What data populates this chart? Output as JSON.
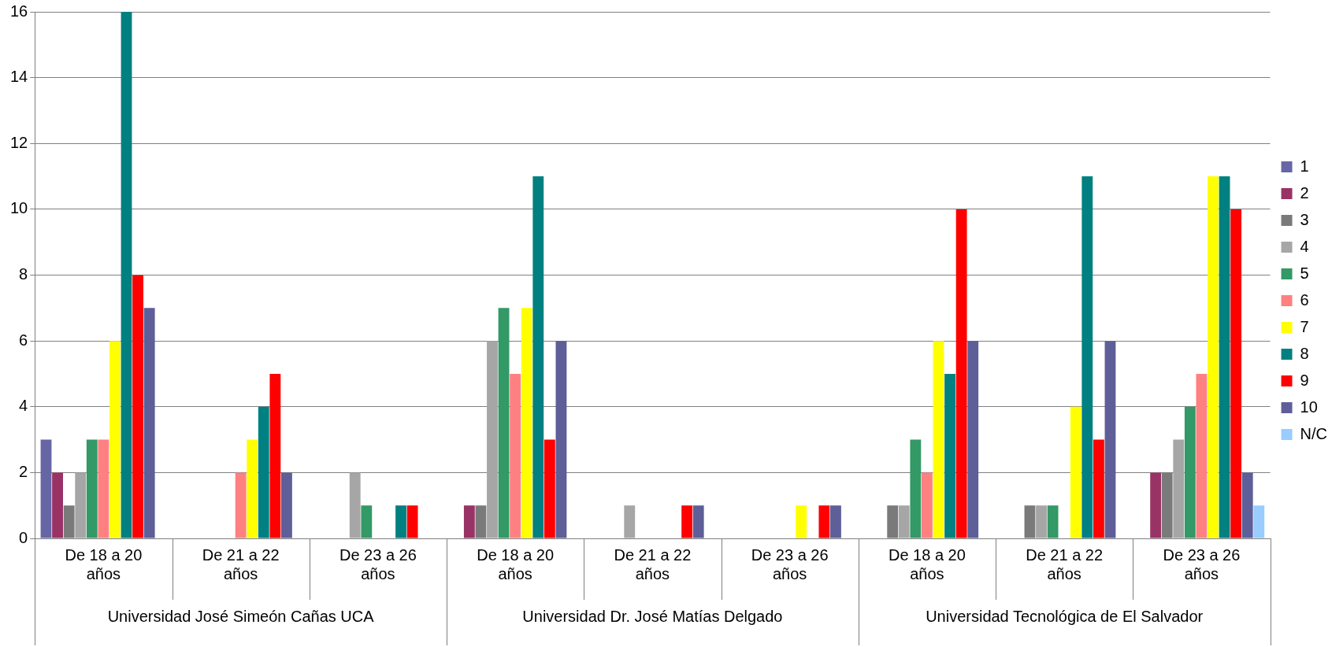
{
  "chart_data": {
    "type": "bar",
    "categories": [
      "De 18 a 20 años",
      "De 21 a 22 años",
      "De 23 a 26 años",
      "De 18 a 20 años",
      "De 21 a 22 años",
      "De 23 a 26 años",
      "De 18 a 20 años",
      "De 21 a 22 años",
      "De 23 a 26 años"
    ],
    "annotations": [
      "Universidad José Simeón Cañas UCA",
      "Universidad Dr. José Matías Delgado",
      "Universidad Tecnológica de El Salvador"
    ],
    "series": [
      {
        "name": "1",
        "color": "#6666a6",
        "values": [
          3,
          0,
          0,
          0,
          0,
          0,
          0,
          0,
          0
        ]
      },
      {
        "name": "2",
        "color": "#993366",
        "values": [
          2,
          0,
          0,
          1,
          0,
          0,
          0,
          0,
          2
        ]
      },
      {
        "name": "3",
        "color": "#7a7a7a",
        "values": [
          1,
          0,
          0,
          1,
          0,
          0,
          1,
          1,
          2
        ]
      },
      {
        "name": "4",
        "color": "#a6a6a6",
        "values": [
          2,
          0,
          2,
          6,
          1,
          0,
          1,
          1,
          3
        ]
      },
      {
        "name": "5",
        "color": "#339966",
        "values": [
          3,
          0,
          1,
          7,
          0,
          0,
          3,
          1,
          4
        ]
      },
      {
        "name": "6",
        "color": "#ff8080",
        "values": [
          3,
          2,
          0,
          5,
          0,
          0,
          2,
          0,
          5
        ]
      },
      {
        "name": "7",
        "color": "#ffff00",
        "values": [
          6,
          3,
          0,
          7,
          0,
          1,
          6,
          4,
          11
        ]
      },
      {
        "name": "8",
        "color": "#008080",
        "values": [
          16,
          4,
          1,
          11,
          0,
          0,
          5,
          11,
          11
        ]
      },
      {
        "name": "9",
        "color": "#ff0000",
        "values": [
          8,
          5,
          1,
          3,
          1,
          1,
          10,
          3,
          10
        ]
      },
      {
        "name": "10",
        "color": "#5e5e99",
        "values": [
          7,
          2,
          0,
          6,
          1,
          1,
          6,
          6,
          2
        ]
      },
      {
        "name": "N/C",
        "color": "#99ccff",
        "values": [
          0,
          0,
          0,
          0,
          0,
          0,
          0,
          0,
          1
        ]
      }
    ],
    "ylim": [
      0,
      16
    ],
    "yticks": [
      0,
      2,
      4,
      6,
      8,
      10,
      12,
      14,
      16
    ],
    "grid": "y",
    "legend": "right"
  }
}
